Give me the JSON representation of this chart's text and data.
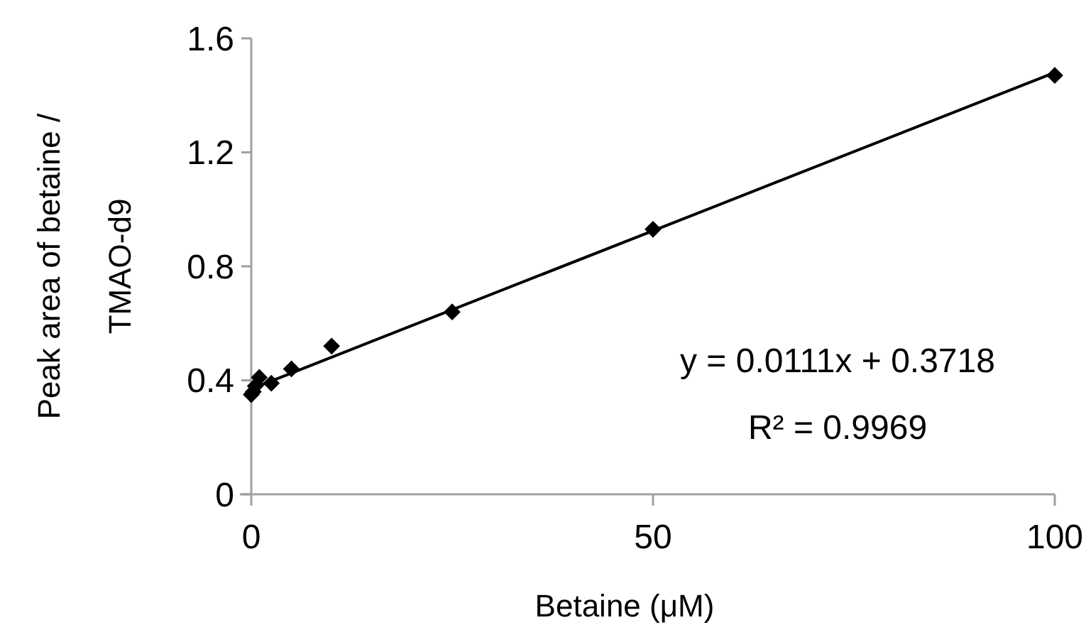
{
  "chart_data": {
    "type": "scatter",
    "xlabel": "Betaine (μM)",
    "ylabel": "Peak area of betaine / TMAO-d9",
    "xlim": [
      0,
      100
    ],
    "xticks": [
      0,
      50,
      100
    ],
    "ylim": [
      0,
      1.6
    ],
    "yticks": [
      0,
      0.4,
      0.8,
      1.2,
      1.6
    ],
    "grid": false,
    "marker": "diamond",
    "series": [
      {
        "color": "#000000",
        "x": [
          0,
          0.25,
          0.5,
          1,
          2.5,
          5,
          10,
          25,
          50,
          100
        ],
        "values": [
          0.35,
          0.36,
          0.38,
          0.41,
          0.39,
          0.44,
          0.52,
          0.64,
          0.93,
          1.47
        ]
      },
      {
        "type": "line",
        "color": "#000000",
        "x": [
          0,
          100
        ],
        "values": [
          0.37,
          1.48
        ],
        "marker": "none",
        "line_style": "solid"
      }
    ],
    "annotations": [
      {
        "text": "y = 0.0111x + 0.3718"
      },
      {
        "text": "R² = 0.9969"
      }
    ]
  }
}
